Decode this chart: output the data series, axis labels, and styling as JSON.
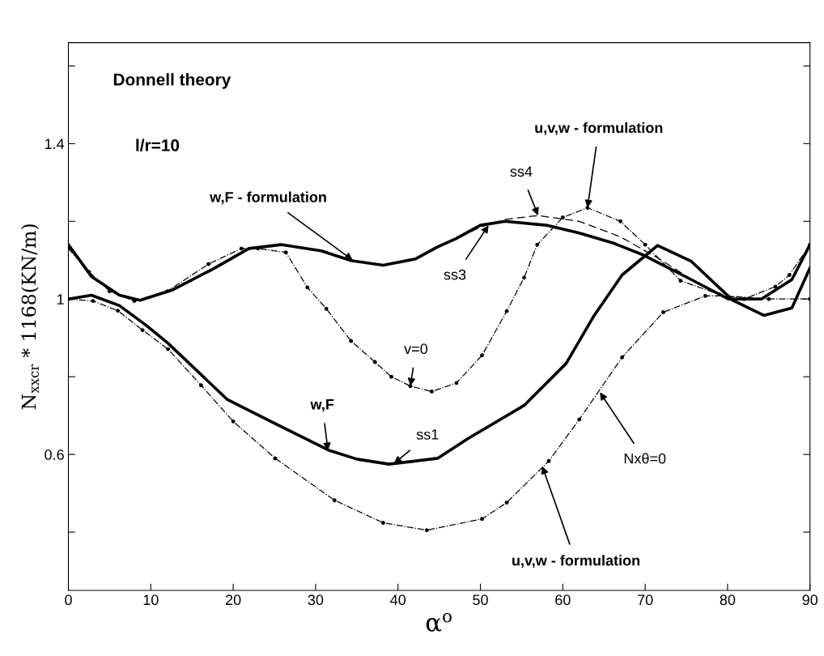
{
  "chart_data": {
    "type": "line",
    "xlabel": "α$^{o}$",
    "ylabel": "N$_{xxcr}$ * 1168(KN/m)",
    "xlim": [
      0,
      90
    ],
    "xticks": [
      0,
      10,
      20,
      30,
      40,
      50,
      60,
      70,
      80,
      90
    ],
    "ylim": [
      0.25,
      1.66
    ],
    "yticks": [
      {
        "value": 0.4,
        "label": null
      },
      0.6,
      {
        "value": 0.8,
        "label": null
      },
      1,
      {
        "value": 1.2,
        "label": null
      },
      1.4,
      {
        "value": 1.6,
        "label": null
      }
    ],
    "grid": false,
    "legend": false,
    "series": [
      {
        "color": "#000000",
        "line_style": "solid",
        "marker": "none",
        "x": [
          0,
          2.8,
          6.2,
          8.7,
          12.7,
          17.6,
          21.9,
          25.8,
          30.7,
          34.3,
          38.2,
          42.1,
          44.8,
          47,
          50,
          53,
          58,
          62,
          66,
          69.8,
          75.6,
          80.1,
          84.1,
          87.8,
          90
        ],
        "values": [
          1.14,
          1.058,
          1.01,
          0.997,
          1.024,
          1.078,
          1.13,
          1.14,
          1.124,
          1.099,
          1.087,
          1.103,
          1.134,
          1.155,
          1.19,
          1.2,
          1.19,
          1.17,
          1.145,
          1.113,
          1.05,
          1.0,
          1.0,
          1.05,
          1.14
        ]
      },
      {
        "color": "#000000",
        "line_style": "solid",
        "marker": "none",
        "x": [
          0,
          2.8,
          6.2,
          9.4,
          12.1,
          19.3,
          25.8,
          31.7,
          35,
          38.9,
          44.8,
          48.5,
          55.3,
          60.4,
          63.7,
          67.2,
          71.5,
          75.6,
          80.6,
          84.4,
          87.8,
          90
        ],
        "values": [
          1.0,
          1.01,
          0.983,
          0.933,
          0.886,
          0.741,
          0.672,
          0.61,
          0.588,
          0.575,
          0.59,
          0.641,
          0.726,
          0.834,
          0.954,
          1.062,
          1.138,
          1.097,
          0.997,
          0.958,
          0.977,
          1.08
        ]
      },
      {
        "color": "#000000",
        "line_style": "dashed",
        "marker": "none",
        "x": [
          44.8,
          47,
          50,
          53,
          57,
          62,
          67,
          72,
          75.6
        ],
        "values": [
          1.134,
          1.155,
          1.185,
          1.205,
          1.215,
          1.2,
          1.16,
          1.1,
          1.05
        ]
      },
      {
        "color": "#000000",
        "line_style": "dotted",
        "marker": "circle",
        "x": [
          0,
          2.5,
          5,
          8,
          12,
          17,
          21,
          23,
          26.4,
          29,
          31.3,
          34.3,
          37.2,
          39.2,
          41.5,
          44.1,
          47.1,
          50.2,
          53.2,
          55.3,
          56.9,
          60,
          63,
          67,
          70,
          74.3,
          79,
          82,
          85.8,
          87.5,
          90
        ],
        "values": [
          1.13,
          1.07,
          1.02,
          0.995,
          1.02,
          1.09,
          1.13,
          1.13,
          1.12,
          1.03,
          0.975,
          0.892,
          0.838,
          0.8,
          0.776,
          0.762,
          0.784,
          0.855,
          0.969,
          1.055,
          1.14,
          1.21,
          1.235,
          1.2,
          1.14,
          1.047,
          1.012,
          1.0,
          1.032,
          1.062,
          1.14
        ]
      },
      {
        "color": "#000000",
        "line_style": "dotted",
        "marker": "circle",
        "x": [
          0,
          3,
          6,
          9,
          12.1,
          16.1,
          20,
          25.1,
          32.3,
          38.2,
          43.5,
          50.2,
          53.2,
          58.3,
          62,
          67.2,
          72.2,
          77.3,
          80,
          85,
          90
        ],
        "values": [
          1.0,
          0.995,
          0.97,
          0.92,
          0.871,
          0.778,
          0.685,
          0.59,
          0.482,
          0.424,
          0.405,
          0.434,
          0.476,
          0.583,
          0.69,
          0.85,
          0.966,
          1.008,
          1.008,
          1.0,
          1.0
        ]
      }
    ],
    "annotations": [
      "Donnell theory",
      "l/r=10",
      {
        "text": "w,F - formulation",
        "x": 34.5,
        "y": 1.1
      },
      {
        "text": "ss4",
        "x": 57,
        "y": 1.215
      },
      {
        "text": "ss3",
        "x": 51,
        "y": 1.19
      },
      {
        "text": "u,v,w - formulation",
        "x": 63,
        "y": 1.235
      },
      {
        "text": "v=0",
        "x": 41.5,
        "y": 0.776
      },
      {
        "text": "w,F",
        "x": 31.5,
        "y": 0.61
      },
      {
        "text": "ss1",
        "x": 39.5,
        "y": 0.576
      },
      {
        "text": "Nxθ=0",
        "x": 64.5,
        "y": 0.76
      },
      {
        "text": "u,v,w - formulation",
        "x": 57.5,
        "y": 0.57
      }
    ]
  }
}
